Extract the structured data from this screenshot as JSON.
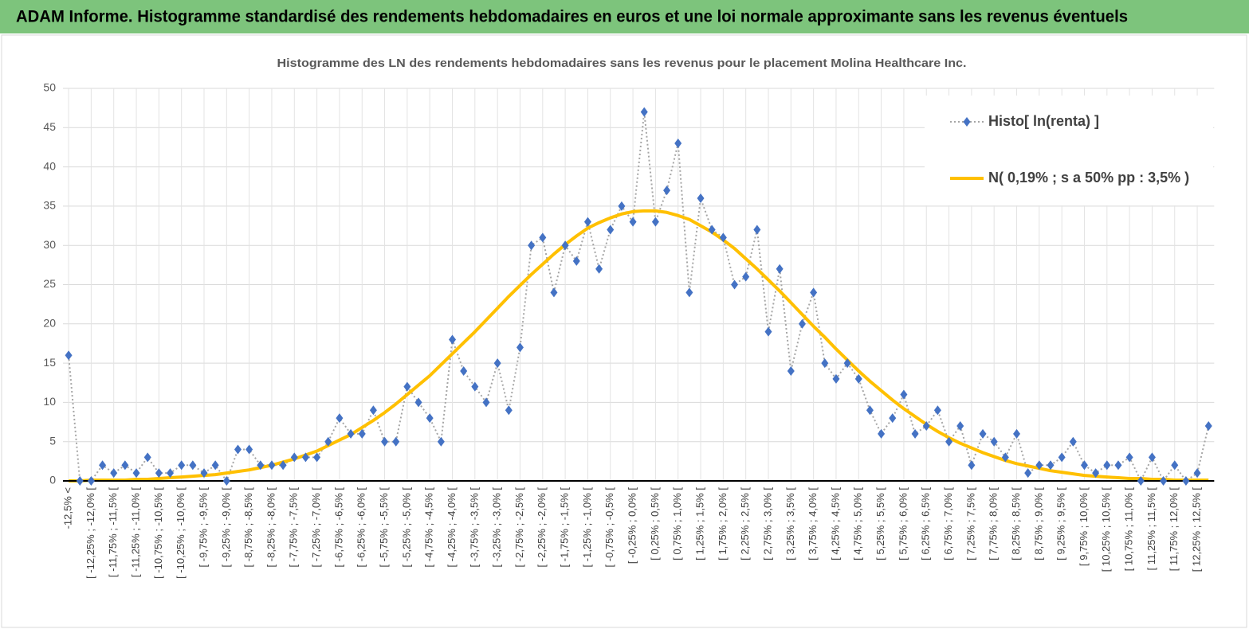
{
  "header": {
    "title": "ADAM Informe. Histogramme standardisé des rendements hebdomadaires en euros et une loi normale approximante sans les revenus éventuels"
  },
  "chart_data": {
    "type": "line",
    "title": "Histogramme des LN des rendements hebdomadaires sans les revenus pour le placement Molina Healthcare Inc.",
    "categories": [
      "-12,5% <",
      null,
      "[ -12,25% ; -12,0% [",
      null,
      "[ -11,75% ; -11,5% [",
      null,
      "[ -11,25% ; -11,0% [",
      null,
      "[ -10,75% ; -10,5% [",
      null,
      "[ -10,25% ; -10,0% [",
      null,
      "[ -9,75% ; -9,5% [",
      null,
      "[ -9,25% ; -9,0% [",
      null,
      "[ -8,75% ; -8,5% [",
      null,
      "[ -8,25% ; -8,0% [",
      null,
      "[ -7,75% ; -7,5% [",
      null,
      "[ -7,25% ; -7,0% [",
      null,
      "[ -6,75% ; -6,5% [",
      null,
      "[ -6,25% ; -6,0% [",
      null,
      "[ -5,75% ; -5,5% [",
      null,
      "[ -5,25% ; -5,0% [",
      null,
      "[ -4,75% ; -4,5% [",
      null,
      "[ -4,25% ; -4,0% [",
      null,
      "[ -3,75% ; -3,5% [",
      null,
      "[ -3,25% ; -3,0% [",
      null,
      "[ -2,75% ; -2,5% [",
      null,
      "[ -2,25% ; -2,0% [",
      null,
      "[ -1,75% ; -1,5% [",
      null,
      "[ -1,25% ; -1,0% [",
      null,
      "[ -0,75% ; -0,5% [",
      null,
      "[ -0,25% ; 0,0% [",
      null,
      "[ 0,25% ; 0,5% [",
      null,
      "[ 0,75% ; 1,0% [",
      null,
      "[ 1,25% ; 1,5% [",
      null,
      "[ 1,75% ; 2,0% [",
      null,
      "[ 2,25% ; 2,5% [",
      null,
      "[ 2,75% ; 3,0% [",
      null,
      "[ 3,25% ; 3,5% [",
      null,
      "[ 3,75% ; 4,0% [",
      null,
      "[ 4,25% ; 4,5% [",
      null,
      "[ 4,75% ; 5,0% [",
      null,
      "[ 5,25% ; 5,5% [",
      null,
      "[ 5,75% ; 6,0% [",
      null,
      "[ 6,25% ; 6,5% [",
      null,
      "[ 6,75% ; 7,0% [",
      null,
      "[ 7,25% ; 7,5% [",
      null,
      "[ 7,75% ; 8,0% [",
      null,
      "[ 8,25% ; 8,5% [",
      null,
      "[ 8,75% ; 9,0% [",
      null,
      "[ 9,25% ; 9,5% [",
      null,
      "[ 9,75% ; 10,0% [",
      null,
      "[ 10,25% ; 10,5% [",
      null,
      "[ 10,75% ; 11,0% [",
      null,
      "[ 11,25% ; 11,5% [",
      null,
      "[ 11,75% ; 12,0% [",
      null,
      "[ 12,25% ; 12,5% [",
      null
    ],
    "series": [
      {
        "name": "Histo[ ln(renta) ]",
        "color": "#4472c4",
        "values": [
          16,
          0,
          0,
          2,
          1,
          2,
          1,
          3,
          1,
          1,
          2,
          2,
          1,
          2,
          0,
          4,
          4,
          2,
          2,
          2,
          3,
          3,
          3,
          5,
          8,
          6,
          6,
          9,
          5,
          5,
          12,
          10,
          8,
          5,
          18,
          14,
          12,
          10,
          15,
          9,
          17,
          30,
          31,
          24,
          30,
          28,
          33,
          27,
          32,
          35,
          33,
          47,
          33,
          37,
          43,
          24,
          36,
          32,
          31,
          25,
          26,
          32,
          19,
          27,
          14,
          20,
          24,
          15,
          13,
          15,
          13,
          9,
          6,
          8,
          11,
          6,
          7,
          9,
          5,
          7,
          2,
          6,
          5,
          3,
          6,
          1,
          2,
          2,
          3,
          5,
          2,
          1,
          2,
          2,
          3,
          0,
          3,
          0,
          2,
          0,
          1,
          7
        ]
      },
      {
        "name": "N( 0,19% ; s a 50% pp : 3,5% )",
        "color": "#ffc000",
        "values": [
          0.0,
          0.0,
          0.1,
          0.1,
          0.1,
          0.1,
          0.2,
          0.2,
          0.3,
          0.4,
          0.5,
          0.6,
          0.7,
          0.8,
          1.0,
          1.2,
          1.4,
          1.7,
          2.0,
          2.4,
          2.8,
          3.3,
          3.8,
          4.5,
          5.2,
          5.9,
          6.8,
          7.7,
          8.7,
          9.8,
          11.0,
          12.2,
          13.4,
          14.8,
          16.2,
          17.6,
          19.0,
          20.5,
          22.0,
          23.5,
          24.9,
          26.3,
          27.6,
          28.9,
          30.1,
          31.2,
          32.2,
          32.9,
          33.5,
          34.0,
          34.3,
          34.4,
          34.4,
          34.2,
          33.8,
          33.3,
          32.5,
          31.7,
          30.7,
          29.6,
          28.3,
          27.0,
          25.6,
          24.2,
          22.7,
          21.2,
          19.7,
          18.3,
          16.8,
          15.4,
          14.0,
          12.7,
          11.5,
          10.3,
          9.2,
          8.2,
          7.2,
          6.3,
          5.5,
          4.8,
          4.2,
          3.6,
          3.1,
          2.6,
          2.2,
          1.9,
          1.6,
          1.3,
          1.1,
          0.9,
          0.7,
          0.6,
          0.5,
          0.4,
          0.3,
          0.3,
          0.2,
          0.2,
          0.1,
          0.1,
          0.1,
          0.1
        ]
      }
    ],
    "ylim": [
      0,
      50
    ],
    "yticks": [
      0,
      5,
      10,
      15,
      20,
      25,
      30,
      35,
      40,
      45,
      50
    ],
    "grid": true,
    "legend": "upper right"
  }
}
